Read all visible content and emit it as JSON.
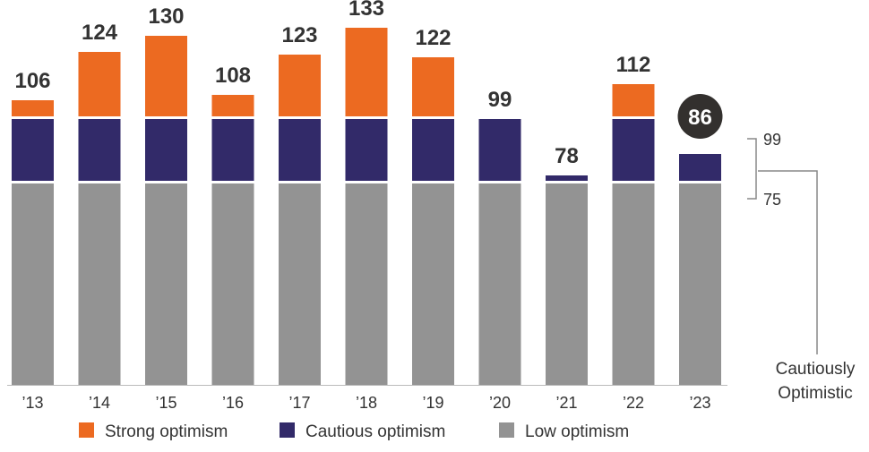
{
  "chart_data": {
    "type": "bar",
    "stacked": true,
    "categories": [
      "’13",
      "’14",
      "’15",
      "’16",
      "’17",
      "’18",
      "’19",
      "’20",
      "’21",
      "’22",
      "’23"
    ],
    "totals": [
      106,
      124,
      130,
      108,
      123,
      133,
      122,
      99,
      78,
      112,
      86
    ],
    "highlight_category": "’23",
    "series": [
      {
        "name": "Low optimism",
        "color": "#939393",
        "values": [
          75,
          75,
          75,
          75,
          75,
          75,
          75,
          75,
          75,
          75,
          75
        ]
      },
      {
        "name": "Cautious optimism",
        "color": "#322a69",
        "values": [
          24,
          24,
          24,
          24,
          24,
          24,
          24,
          24,
          3,
          24,
          11
        ]
      },
      {
        "name": "Strong optimism",
        "color": "#ec6a21",
        "values": [
          7,
          25,
          31,
          9,
          24,
          34,
          23,
          0,
          0,
          13,
          0
        ]
      }
    ],
    "legend": {
      "position": "bottom",
      "entries": [
        "Strong optimism",
        "Cautious optimism",
        "Low optimism"
      ]
    },
    "bracket": {
      "upper": "99",
      "lower": "75",
      "label_lines": [
        "Cautiously",
        "Optimistic"
      ]
    },
    "ylim": [
      0,
      133
    ],
    "grid": false
  }
}
